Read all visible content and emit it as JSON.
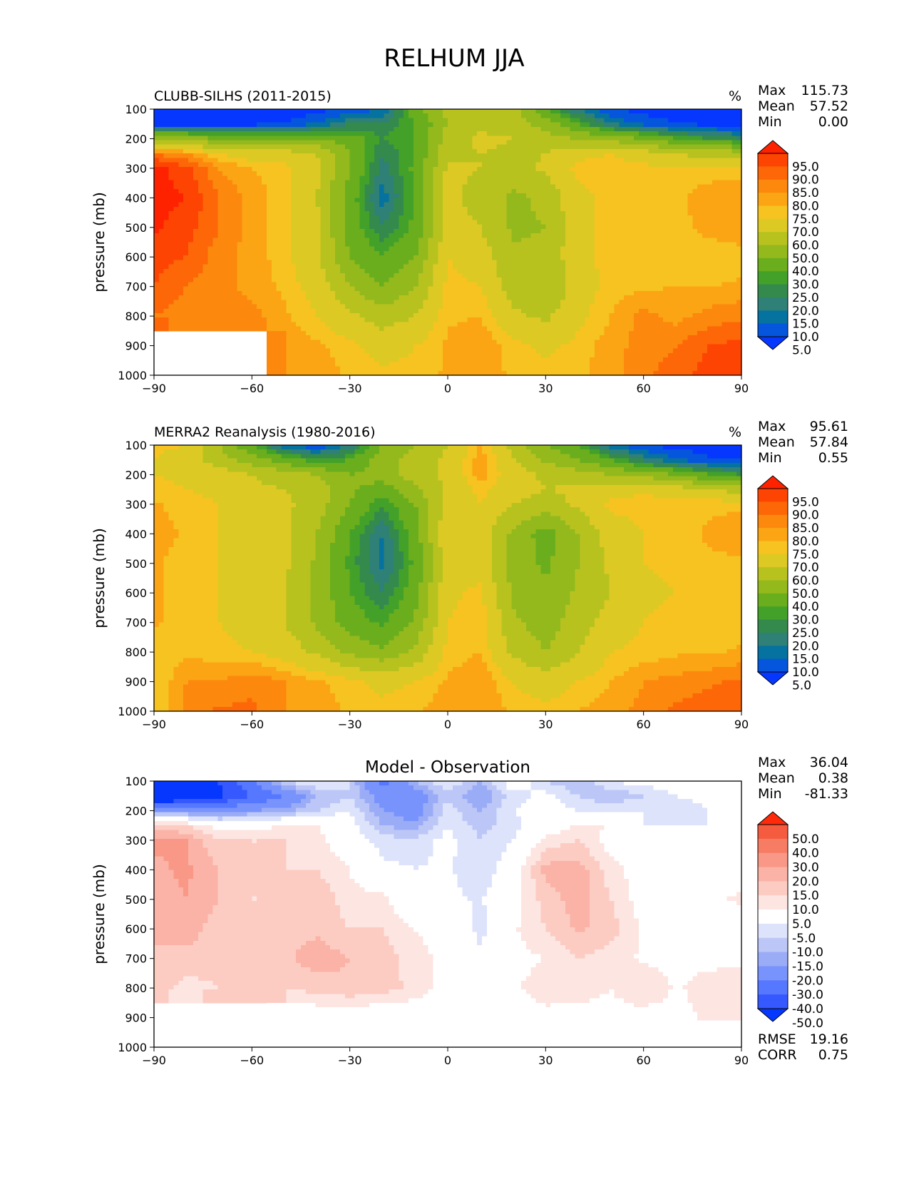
{
  "figure": {
    "title": "RELHUM JJA"
  },
  "colors": {
    "abs_levels": [
      5,
      10,
      15,
      20,
      25,
      30,
      40,
      50,
      60,
      70,
      75,
      80,
      85,
      90,
      95
    ],
    "abs_palette": [
      "#0537ff",
      "#0556dc",
      "#06729f",
      "#2f8076",
      "#348a4c",
      "#43a12a",
      "#6aae1d",
      "#93b91c",
      "#b8c21f",
      "#ddc923",
      "#f6c320",
      "#fba514",
      "#fc880d",
      "#fd6707",
      "#fe4402",
      "#ff2200"
    ],
    "diff_levels": [
      -50,
      -40,
      -30,
      -20,
      -15,
      -10,
      -5,
      5,
      10,
      15,
      20,
      30,
      40,
      50
    ],
    "diff_palette": [
      "#0537ff",
      "#3558ff",
      "#5677ff",
      "#7893fb",
      "#9bacf7",
      "#bcc7f7",
      "#dde3fb",
      "#ffffff",
      "#fde5e1",
      "#fcccc3",
      "#fab3a6",
      "#f99886",
      "#f77c64",
      "#f55c3f",
      "#ff2a0a"
    ]
  },
  "chart_data": [
    {
      "type": "heatmap",
      "title": "CLUBB-SILHS (2011-2015)",
      "units": "%",
      "ylabel": "pressure (mb)",
      "xlim": [
        -90,
        90
      ],
      "ylim": [
        100,
        1000
      ],
      "xticks": [
        "−90",
        "−60",
        "−30",
        "0",
        "30",
        "60",
        "90"
      ],
      "yticks": [
        "100",
        "200",
        "300",
        "400",
        "500",
        "600",
        "700",
        "800",
        "900",
        "1000"
      ],
      "stats": {
        "max_label": "Max",
        "max": "115.73",
        "mean_label": "Mean",
        "mean": "57.52",
        "min_label": "Min",
        "min": "0.00"
      },
      "colorbar_labels": [
        "95.0",
        "90.0",
        "85.0",
        "80.0",
        "75.0",
        "70.0",
        "60.0",
        "50.0",
        "40.0",
        "30.0",
        "25.0",
        "20.0",
        "15.0",
        "10.0",
        "5.0"
      ],
      "lat": [
        -90,
        -80,
        -70,
        -60,
        -50,
        -40,
        -30,
        -20,
        -10,
        0,
        10,
        20,
        30,
        40,
        50,
        60,
        70,
        80,
        90
      ],
      "lev": [
        100,
        150,
        200,
        250,
        300,
        400,
        500,
        600,
        700,
        800,
        900,
        1000
      ],
      "values": [
        [
          1,
          1,
          1,
          1,
          2,
          3,
          6,
          10,
          35,
          55,
          60,
          55,
          30,
          15,
          5,
          3,
          2,
          1,
          1
        ],
        [
          2,
          2,
          2,
          3,
          5,
          10,
          20,
          20,
          30,
          50,
          58,
          55,
          45,
          30,
          15,
          8,
          5,
          3,
          2
        ],
        [
          50,
          45,
          40,
          40,
          38,
          40,
          35,
          25,
          30,
          55,
          62,
          60,
          55,
          50,
          45,
          40,
          30,
          25,
          20
        ],
        [
          85,
          80,
          70,
          65,
          65,
          60,
          40,
          20,
          30,
          58,
          60,
          58,
          60,
          68,
          70,
          65,
          60,
          55,
          55
        ],
        [
          97,
          92,
          80,
          75,
          72,
          62,
          40,
          17,
          32,
          62,
          60,
          55,
          62,
          72,
          73,
          72,
          72,
          72,
          72
        ],
        [
          97,
          95,
          85,
          78,
          72,
          60,
          35,
          12,
          30,
          64,
          55,
          48,
          52,
          68,
          72,
          72,
          74,
          78,
          80
        ],
        [
          96,
          92,
          85,
          78,
          72,
          62,
          35,
          20,
          32,
          65,
          60,
          48,
          50,
          68,
          72,
          72,
          72,
          78,
          80
        ],
        [
          92,
          90,
          82,
          78,
          72,
          62,
          40,
          30,
          40,
          70,
          65,
          52,
          52,
          68,
          72,
          72,
          72,
          70,
          72
        ],
        [
          90,
          85,
          82,
          78,
          74,
          66,
          50,
          40,
          50,
          72,
          70,
          55,
          50,
          65,
          73,
          74,
          75,
          75,
          76
        ],
        [
          85,
          82,
          82,
          82,
          76,
          70,
          62,
          55,
          60,
          74,
          75,
          62,
          58,
          68,
          75,
          82,
          78,
          82,
          84
        ],
        [
          null,
          null,
          null,
          null,
          80,
          76,
          72,
          66,
          70,
          76,
          80,
          72,
          68,
          72,
          78,
          82,
          85,
          90,
          92
        ],
        [
          null,
          null,
          null,
          null,
          80,
          78,
          74,
          72,
          72,
          76,
          78,
          74,
          72,
          74,
          78,
          84,
          88,
          92,
          95
        ]
      ]
    },
    {
      "type": "heatmap",
      "title": "MERRA2 Reanalysis (1980-2016)",
      "units": "%",
      "ylabel": "pressure (mb)",
      "xlim": [
        -90,
        90
      ],
      "ylim": [
        100,
        1000
      ],
      "xticks": [
        "−90",
        "−60",
        "−30",
        "0",
        "30",
        "60",
        "90"
      ],
      "yticks": [
        "100",
        "200",
        "300",
        "400",
        "500",
        "600",
        "700",
        "800",
        "900",
        "1000"
      ],
      "stats": {
        "max_label": "Max",
        "max": "95.61",
        "mean_label": "Mean",
        "mean": "57.84",
        "min_label": "Min",
        "min": "0.55"
      },
      "colorbar_labels": [
        "95.0",
        "90.0",
        "85.0",
        "80.0",
        "75.0",
        "70.0",
        "60.0",
        "50.0",
        "40.0",
        "30.0",
        "25.0",
        "20.0",
        "15.0",
        "10.0",
        "5.0"
      ],
      "lat": [
        -90,
        -80,
        -70,
        -60,
        -50,
        -40,
        -30,
        -20,
        -10,
        0,
        10,
        20,
        30,
        40,
        50,
        60,
        70,
        80,
        90
      ],
      "lev": [
        100,
        150,
        200,
        250,
        300,
        400,
        500,
        600,
        700,
        800,
        900,
        1000
      ],
      "values": [
        [
          72,
          70,
          50,
          30,
          10,
          5,
          15,
          40,
          50,
          60,
          75,
          55,
          40,
          30,
          10,
          5,
          3,
          2,
          2
        ],
        [
          70,
          65,
          55,
          45,
          35,
          25,
          30,
          45,
          55,
          62,
          78,
          62,
          48,
          40,
          30,
          18,
          10,
          6,
          5
        ],
        [
          70,
          68,
          65,
          60,
          55,
          50,
          40,
          45,
          55,
          62,
          78,
          65,
          58,
          55,
          50,
          45,
          40,
          30,
          25
        ],
        [
          72,
          70,
          68,
          62,
          60,
          55,
          42,
          35,
          48,
          63,
          72,
          65,
          60,
          62,
          65,
          70,
          65,
          60,
          55
        ],
        [
          76,
          72,
          70,
          65,
          62,
          55,
          40,
          25,
          40,
          65,
          70,
          60,
          55,
          62,
          72,
          72,
          72,
          74,
          74
        ],
        [
          78,
          74,
          70,
          68,
          62,
          50,
          30,
          15,
          35,
          68,
          65,
          48,
          35,
          50,
          65,
          70,
          72,
          76,
          78
        ],
        [
          76,
          72,
          70,
          68,
          62,
          48,
          28,
          13,
          32,
          67,
          66,
          45,
          38,
          50,
          62,
          70,
          72,
          74,
          74
        ],
        [
          76,
          72,
          70,
          66,
          60,
          48,
          30,
          20,
          35,
          68,
          72,
          48,
          42,
          52,
          60,
          68,
          70,
          72,
          72
        ],
        [
          76,
          72,
          70,
          66,
          60,
          48,
          35,
          28,
          42,
          70,
          74,
          52,
          45,
          55,
          65,
          70,
          72,
          72,
          72
        ],
        [
          72,
          74,
          72,
          70,
          66,
          58,
          48,
          42,
          52,
          72,
          75,
          58,
          50,
          60,
          70,
          72,
          74,
          74,
          76
        ],
        [
          70,
          80,
          80,
          84,
          80,
          76,
          72,
          68,
          70,
          76,
          80,
          70,
          65,
          70,
          75,
          80,
          82,
          84,
          86
        ],
        [
          70,
          82,
          86,
          86,
          80,
          78,
          74,
          72,
          74,
          78,
          80,
          74,
          72,
          75,
          78,
          82,
          86,
          88,
          90
        ]
      ]
    },
    {
      "type": "heatmap",
      "title": "Model - Observation",
      "ylabel": "pressure (mb)",
      "xlim": [
        -90,
        90
      ],
      "ylim": [
        100,
        1000
      ],
      "xticks": [
        "−90",
        "−60",
        "−30",
        "0",
        "30",
        "60",
        "90"
      ],
      "yticks": [
        "100",
        "200",
        "300",
        "400",
        "500",
        "600",
        "700",
        "800",
        "900",
        "1000"
      ],
      "stats": {
        "max_label": "Max",
        "max": "36.04",
        "mean_label": "Mean",
        "mean": "0.38",
        "min_label": "Min",
        "min": "-81.33"
      },
      "colorbar_labels": [
        "50.0",
        "40.0",
        "30.0",
        "20.0",
        "15.0",
        "10.0",
        "5.0",
        "-5.0",
        "-10.0",
        "-15.0",
        "-20.0",
        "-30.0",
        "-40.0",
        "-50.0"
      ],
      "footer_stats": {
        "rmse_label": "RMSE",
        "rmse": "19.16",
        "corr_label": "CORR",
        "corr": "0.75"
      },
      "lat": [
        -90,
        -80,
        -70,
        -60,
        -50,
        -40,
        -30,
        -20,
        -10,
        0,
        10,
        20,
        30,
        40,
        50,
        60,
        70,
        80,
        90
      ],
      "lev": [
        100,
        150,
        200,
        250,
        300,
        400,
        500,
        600,
        700,
        800,
        900,
        1000
      ],
      "values": [
        [
          -70,
          -70,
          -50,
          -30,
          -10,
          -4,
          -10,
          -35,
          -15,
          -5,
          -15,
          0,
          -10,
          -15,
          -5,
          -2,
          -2,
          -1,
          -1
        ],
        [
          -68,
          -63,
          -52,
          -40,
          -30,
          -15,
          -10,
          -25,
          -25,
          -12,
          -20,
          -7,
          -3,
          -10,
          -15,
          -10,
          -5,
          -3,
          -3
        ],
        [
          -20,
          -23,
          -25,
          -20,
          -17,
          -10,
          -5,
          -20,
          -25,
          -7,
          -16,
          -5,
          -3,
          -5,
          -5,
          -5,
          -10,
          -5,
          -5
        ],
        [
          13,
          10,
          2,
          3,
          5,
          5,
          -2,
          -15,
          -18,
          -5,
          -12,
          -7,
          0,
          6,
          5,
          -5,
          -5,
          -5,
          0
        ],
        [
          21,
          20,
          10,
          10,
          10,
          7,
          0,
          -8,
          -8,
          -3,
          -10,
          -5,
          7,
          10,
          2,
          0,
          0,
          -2,
          -2
        ],
        [
          19,
          21,
          15,
          10,
          10,
          10,
          5,
          -3,
          -5,
          -4,
          -10,
          0,
          17,
          18,
          7,
          2,
          2,
          2,
          2
        ],
        [
          18,
          20,
          15,
          10,
          10,
          14,
          7,
          7,
          -5,
          -3,
          -6,
          3,
          12,
          18,
          10,
          2,
          0,
          4,
          6
        ],
        [
          16,
          18,
          12,
          12,
          12,
          14,
          10,
          10,
          5,
          2,
          -7,
          4,
          10,
          16,
          12,
          4,
          2,
          -2,
          0
        ],
        [
          14,
          13,
          12,
          12,
          14,
          18,
          15,
          12,
          8,
          2,
          -4,
          3,
          5,
          10,
          8,
          4,
          3,
          3,
          4
        ],
        [
          13,
          8,
          10,
          12,
          10,
          12,
          14,
          13,
          8,
          2,
          0,
          4,
          8,
          8,
          5,
          10,
          4,
          8,
          8
        ],
        [
          null,
          null,
          null,
          null,
          0,
          0,
          0,
          -2,
          0,
          0,
          0,
          2,
          3,
          2,
          3,
          2,
          3,
          6,
          6
        ],
        [
          null,
          null,
          null,
          null,
          0,
          0,
          0,
          0,
          0,
          0,
          0,
          0,
          0,
          0,
          0,
          0,
          0,
          0,
          0
        ]
      ]
    }
  ]
}
